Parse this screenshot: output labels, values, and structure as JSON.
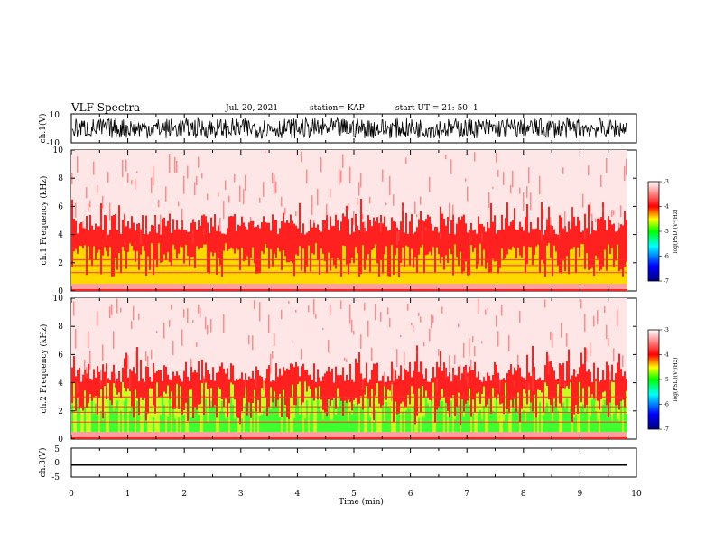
{
  "header": {
    "title": "VLF Spectra",
    "date": "Jul. 20, 2021",
    "station": "station= KAP",
    "start": "start UT = 21: 50: 1"
  },
  "colors": {
    "colormap": [
      "#00007f",
      "#0000ff",
      "#00ffff",
      "#00ff00",
      "#ffff00",
      "#ff0000",
      "#ffffff"
    ],
    "waveform": "#000000"
  },
  "chart_data": [
    {
      "type": "line",
      "panel": "ch1-waveform",
      "ylabel": "ch.1(V)",
      "ylim": [
        -10,
        10
      ],
      "yticks": [
        "10",
        "-10"
      ],
      "xlim": [
        0,
        10
      ],
      "series": [
        {
          "values": "noisy broadband waveform, approx. +/-7 V envelope, 0 to 9.83 min"
        }
      ]
    },
    {
      "type": "heatmap",
      "panel": "ch1-spectrogram",
      "ylabel": "ch.1 Frequency (kHz)",
      "ylim": [
        0,
        10
      ],
      "yticks": [
        "0",
        "2",
        "4",
        "6",
        "8",
        "10"
      ],
      "xlim": [
        0,
        10
      ],
      "data_end_min": 9.83,
      "colorbar": {
        "label": "log(PSD)(V²/Hz)",
        "range": [
          -7,
          -3
        ],
        "ticks": [
          "-3",
          "-4",
          "-5",
          "-6",
          "-7"
        ]
      },
      "bands_khz": [
        1.3,
        1.8,
        2.2
      ]
    },
    {
      "type": "heatmap",
      "panel": "ch2-spectrogram",
      "ylabel": "ch.2 Frequency (kHz)",
      "ylim": [
        0,
        10
      ],
      "yticks": [
        "0",
        "2",
        "4",
        "6",
        "8",
        "10"
      ],
      "xlim": [
        0,
        10
      ],
      "data_end_min": 9.83,
      "colorbar": {
        "label": "log(PSD)(V²/Hz)",
        "range": [
          -7,
          -3
        ],
        "ticks": [
          "-3",
          "-4",
          "-5",
          "-6",
          "-7"
        ]
      },
      "bands_khz": [
        1.2,
        1.9,
        2.3,
        3.0
      ]
    },
    {
      "type": "line",
      "panel": "ch3-waveform",
      "ylabel": "ch.3(V)",
      "ylim": [
        -5,
        5
      ],
      "yticks": [
        "5",
        "0",
        "-5"
      ],
      "xlim": [
        0,
        10
      ],
      "series": [
        {
          "values": "near-constant waveform approx. -0.8 V, thickness approx. 0.3 V"
        }
      ]
    }
  ],
  "xaxis": {
    "label": "Time (min)",
    "ticks": [
      "0",
      "1",
      "2",
      "3",
      "4",
      "5",
      "6",
      "7",
      "8",
      "9",
      "10"
    ]
  }
}
